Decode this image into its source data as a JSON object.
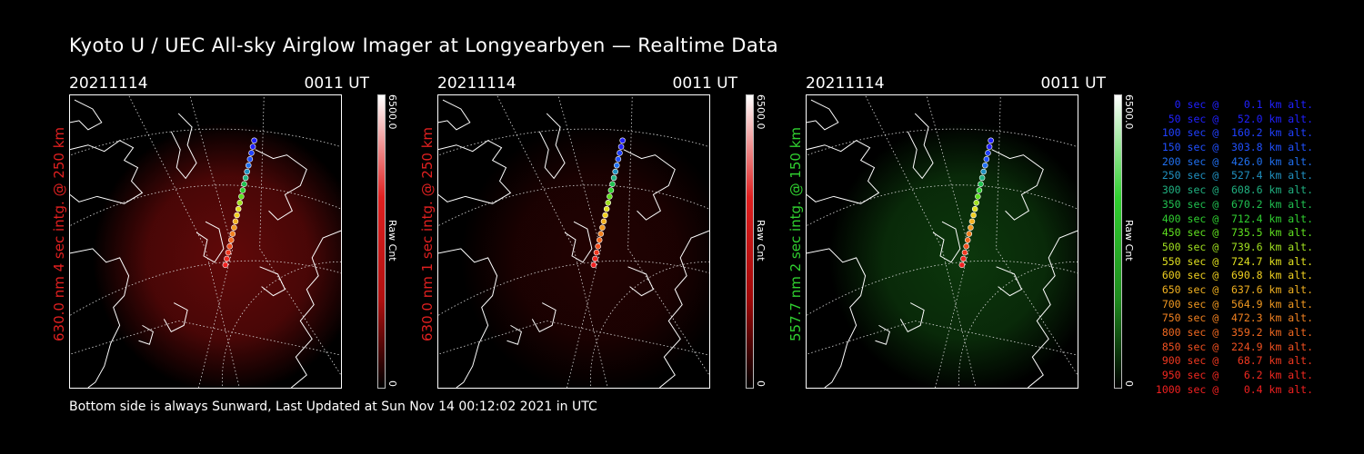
{
  "title": "Kyoto U / UEC All-sky Airglow Imager at Longyearbyen — Realtime Data",
  "footer": "Bottom side is always Sunward, Last Updated at Sun Nov 14 00:12:02 2021 in UTC",
  "panels": [
    {
      "date": "20211114",
      "time": "0011  UT",
      "ylabel": "630.0 nm 4 sec intg. @ 250 km",
      "color": "#e02020",
      "glow": "#b01010",
      "cbar_max": "6500.0",
      "cbar_min": "0",
      "cbar_label": "Raw Cnt",
      "intensity": 0.55
    },
    {
      "date": "20211114",
      "time": "0011  UT",
      "ylabel": "630.0 nm 1 sec intg. @ 250 km",
      "color": "#e02020",
      "glow": "#a00808",
      "cbar_max": "6500.0",
      "cbar_min": "0",
      "cbar_label": "Raw Cnt",
      "intensity": 0.22
    },
    {
      "date": "20211114",
      "time": "0011  UT",
      "ylabel": "557.7 nm 2 sec intg. @ 150 km",
      "color": "#30d030",
      "glow": "#1e8a1e",
      "cbar_max": "6500.0",
      "cbar_min": "0",
      "cbar_label": "Raw Cnt",
      "intensity": 0.4
    }
  ],
  "legend": [
    {
      "text": "   0 sec @    0.1 km alt.",
      "color": "#2020ff"
    },
    {
      "text": "  50 sec @   52.0 km alt.",
      "color": "#2020ff"
    },
    {
      "text": " 100 sec @  160.2 km alt.",
      "color": "#2040ff"
    },
    {
      "text": " 150 sec @  303.8 km alt.",
      "color": "#2050ff"
    },
    {
      "text": " 200 sec @  426.0 km alt.",
      "color": "#2070f0"
    },
    {
      "text": " 250 sec @  527.4 km alt.",
      "color": "#2090c0"
    },
    {
      "text": " 300 sec @  608.6 km alt.",
      "color": "#20b080"
    },
    {
      "text": " 350 sec @  670.2 km alt.",
      "color": "#20c050"
    },
    {
      "text": " 400 sec @  712.4 km alt.",
      "color": "#30d030"
    },
    {
      "text": " 450 sec @  735.5 km alt.",
      "color": "#60e020"
    },
    {
      "text": " 500 sec @  739.6 km alt.",
      "color": "#a0e020"
    },
    {
      "text": " 550 sec @  724.7 km alt.",
      "color": "#e0e020"
    },
    {
      "text": " 600 sec @  690.8 km alt.",
      "color": "#f0d020"
    },
    {
      "text": " 650 sec @  637.6 km alt.",
      "color": "#f0b020"
    },
    {
      "text": " 700 sec @  564.9 km alt.",
      "color": "#f09820"
    },
    {
      "text": " 750 sec @  472.3 km alt.",
      "color": "#f08020"
    },
    {
      "text": " 800 sec @  359.2 km alt.",
      "color": "#f06820"
    },
    {
      "text": " 850 sec @  224.9 km alt.",
      "color": "#f05020"
    },
    {
      "text": " 900 sec @   68.7 km alt.",
      "color": "#f03820"
    },
    {
      "text": " 950 sec @    6.2 km alt.",
      "color": "#f02820"
    },
    {
      "text": "1000 sec @    0.4 km alt.",
      "color": "#f02020"
    }
  ]
}
